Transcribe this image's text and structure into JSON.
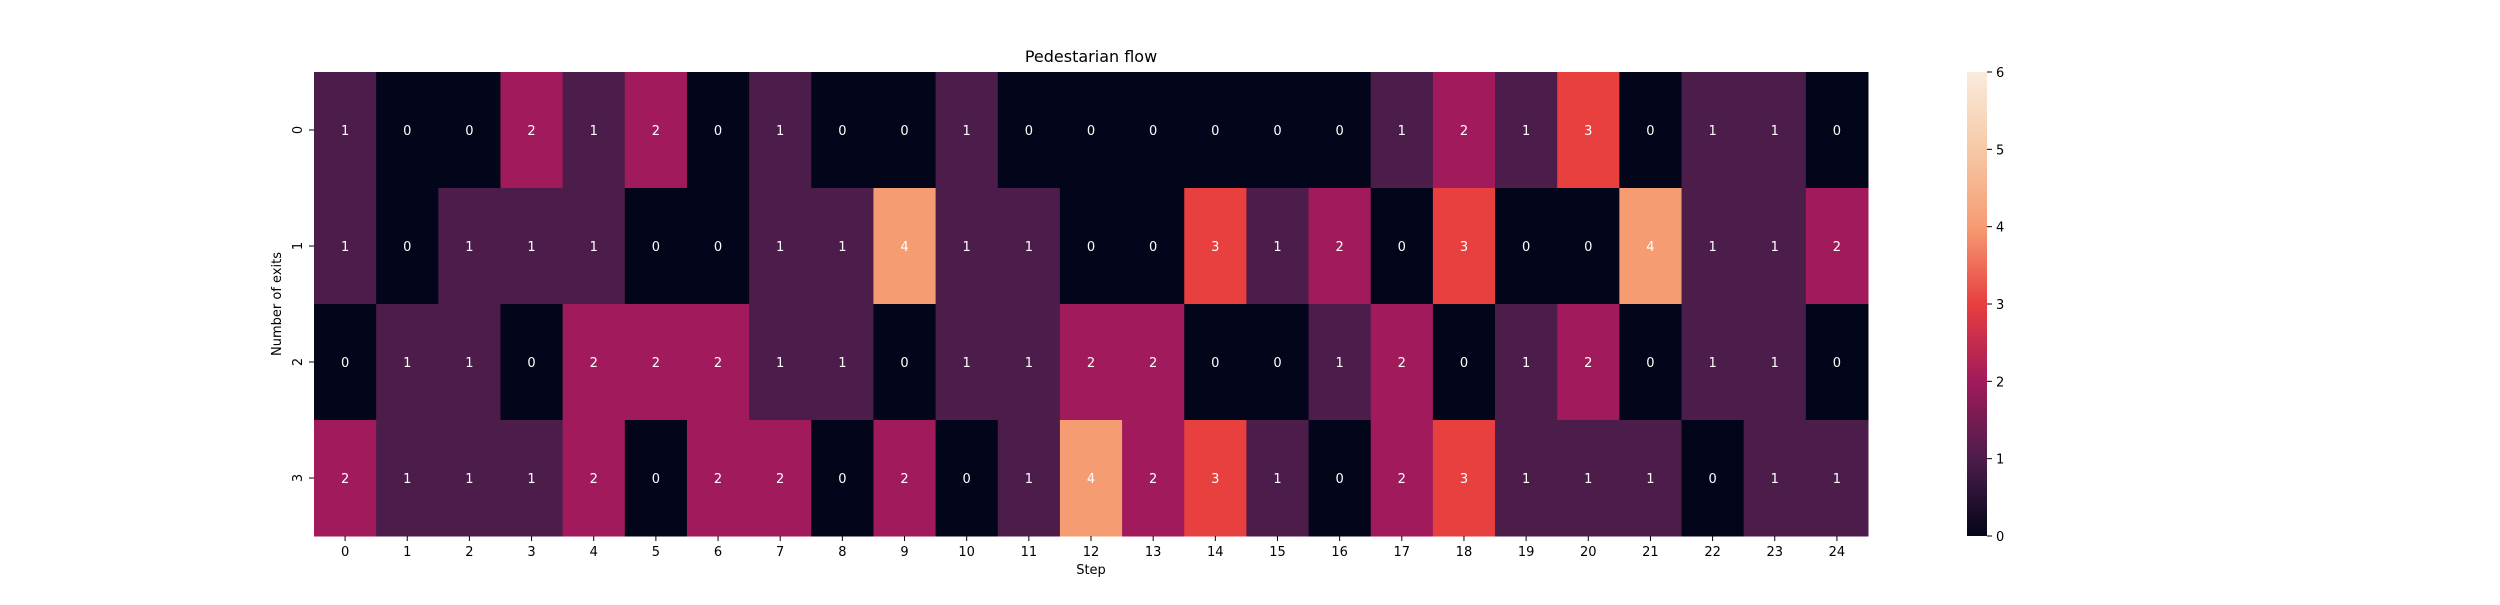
{
  "chart_data": {
    "type": "heatmap",
    "title": "Pedestarian flow",
    "xlabel": "Step",
    "ylabel": "Number of exits",
    "x_categories": [
      "0",
      "1",
      "2",
      "3",
      "4",
      "5",
      "6",
      "7",
      "8",
      "9",
      "10",
      "11",
      "12",
      "13",
      "14",
      "15",
      "16",
      "17",
      "18",
      "19",
      "20",
      "21",
      "22",
      "23",
      "24"
    ],
    "y_categories": [
      "0",
      "1",
      "2",
      "3"
    ],
    "values": [
      [
        1,
        0,
        0,
        2,
        1,
        2,
        0,
        1,
        0,
        0,
        1,
        0,
        0,
        0,
        0,
        0,
        0,
        1,
        2,
        1,
        3,
        0,
        1,
        1,
        0
      ],
      [
        1,
        0,
        1,
        1,
        1,
        0,
        0,
        1,
        1,
        4,
        1,
        1,
        0,
        0,
        3,
        1,
        2,
        0,
        3,
        0,
        0,
        4,
        1,
        1,
        2
      ],
      [
        0,
        1,
        1,
        0,
        2,
        2,
        2,
        1,
        1,
        0,
        1,
        1,
        2,
        2,
        0,
        0,
        1,
        2,
        0,
        1,
        2,
        0,
        1,
        1,
        0
      ],
      [
        2,
        1,
        1,
        1,
        2,
        0,
        2,
        2,
        0,
        2,
        0,
        1,
        4,
        2,
        3,
        1,
        0,
        2,
        3,
        1,
        1,
        1,
        0,
        1,
        1
      ]
    ],
    "annotated": true,
    "colorbar": {
      "min": 0,
      "max": 6,
      "ticks": [
        "0",
        "1",
        "2",
        "3",
        "4",
        "5",
        "6"
      ]
    },
    "colormap": "rocket"
  }
}
